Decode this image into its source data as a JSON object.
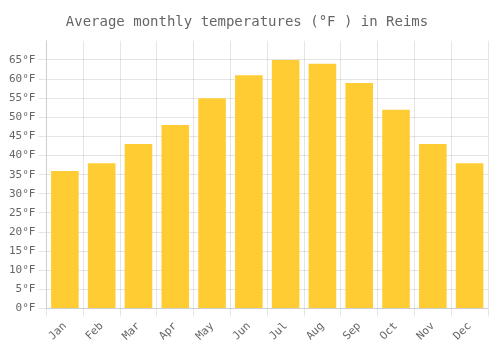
{
  "chart_data": {
    "type": "bar",
    "title": "Average monthly temperatures (°F ) in Reims",
    "categories": [
      "Jan",
      "Feb",
      "Mar",
      "Apr",
      "May",
      "Jun",
      "Jul",
      "Aug",
      "Sep",
      "Oct",
      "Nov",
      "Dec"
    ],
    "values": [
      36,
      38,
      43,
      48,
      55,
      61,
      65,
      64,
      59,
      52,
      43,
      38
    ],
    "color": "#FFCC33",
    "ylim": [
      0,
      70
    ],
    "yticks": [
      {
        "value": 0,
        "label": "0°F"
      },
      {
        "value": 5,
        "label": "5°F"
      },
      {
        "value": 10,
        "label": "10°F"
      },
      {
        "value": 15,
        "label": "15°F"
      },
      {
        "value": 20,
        "label": "20°F"
      },
      {
        "value": 25,
        "label": "25°F"
      },
      {
        "value": 30,
        "label": "30°F"
      },
      {
        "value": 35,
        "label": "35°F"
      },
      {
        "value": 40,
        "label": "40°F"
      },
      {
        "value": 45,
        "label": "45°F"
      },
      {
        "value": 50,
        "label": "50°F"
      },
      {
        "value": 55,
        "label": "55°F"
      },
      {
        "value": 60,
        "label": "60°F"
      },
      {
        "value": 65,
        "label": "65°F"
      }
    ],
    "grid": true
  }
}
